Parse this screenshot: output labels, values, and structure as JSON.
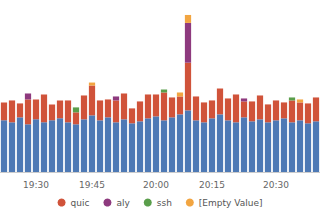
{
  "chart_data": {
    "type": "bar",
    "stacked": true,
    "legend": "bottom",
    "grid": false,
    "tick_labels": "x",
    "categories": [
      null,
      null,
      null,
      null,
      "19:30",
      null,
      null,
      null,
      null,
      null,
      null,
      "19:45",
      null,
      null,
      null,
      null,
      null,
      null,
      null,
      "20:00",
      null,
      null,
      null,
      null,
      null,
      null,
      "20:15",
      null,
      null,
      null,
      null,
      null,
      null,
      null,
      "20:30",
      null,
      null,
      null,
      null,
      null
    ],
    "ylim": [
      0,
      165
    ],
    "series": [
      {
        "color": "#4e79b5",
        "values": [
          52,
          50,
          55,
          48,
          53,
          50,
          52,
          54,
          50,
          48,
          53,
          57,
          52,
          55,
          50,
          53,
          49,
          51,
          54,
          56,
          52,
          55,
          58,
          62,
          52,
          50,
          54,
          58,
          52,
          50,
          55,
          51,
          53,
          50,
          52,
          54,
          50,
          52,
          49,
          51
        ]
      },
      {
        "name": "quic",
        "color": "#d0533a",
        "values": [
          18,
          22,
          14,
          25,
          20,
          28,
          16,
          18,
          22,
          12,
          24,
          30,
          20,
          18,
          22,
          26,
          15,
          20,
          24,
          22,
          28,
          20,
          18,
          48,
          24,
          20,
          18,
          26,
          22,
          28,
          16,
          20,
          24,
          18,
          20,
          16,
          22,
          18,
          20,
          24
        ]
      },
      {
        "name": "aly",
        "color": "#8e3a7e",
        "values": [
          0,
          0,
          0,
          6,
          0,
          0,
          0,
          0,
          0,
          0,
          0,
          0,
          0,
          0,
          4,
          0,
          0,
          0,
          0,
          0,
          0,
          0,
          0,
          40,
          0,
          0,
          0,
          0,
          0,
          0,
          3,
          0,
          0,
          0,
          0,
          0,
          0,
          0,
          0,
          0
        ]
      },
      {
        "name": "ssh",
        "color": "#5a9e4b",
        "values": [
          0,
          0,
          0,
          0,
          0,
          0,
          0,
          0,
          0,
          5,
          0,
          0,
          0,
          0,
          0,
          0,
          0,
          0,
          0,
          0,
          3,
          0,
          0,
          0,
          0,
          0,
          0,
          0,
          0,
          0,
          0,
          0,
          0,
          0,
          0,
          0,
          3,
          0,
          0,
          0
        ]
      },
      {
        "name": "[Empty Value]",
        "color": "#f2a541",
        "values": [
          0,
          0,
          0,
          0,
          0,
          0,
          0,
          0,
          0,
          0,
          0,
          3,
          0,
          0,
          0,
          0,
          0,
          0,
          0,
          0,
          0,
          0,
          4,
          8,
          0,
          0,
          0,
          0,
          0,
          0,
          0,
          0,
          0,
          0,
          0,
          0,
          0,
          3,
          0,
          0
        ]
      }
    ]
  }
}
